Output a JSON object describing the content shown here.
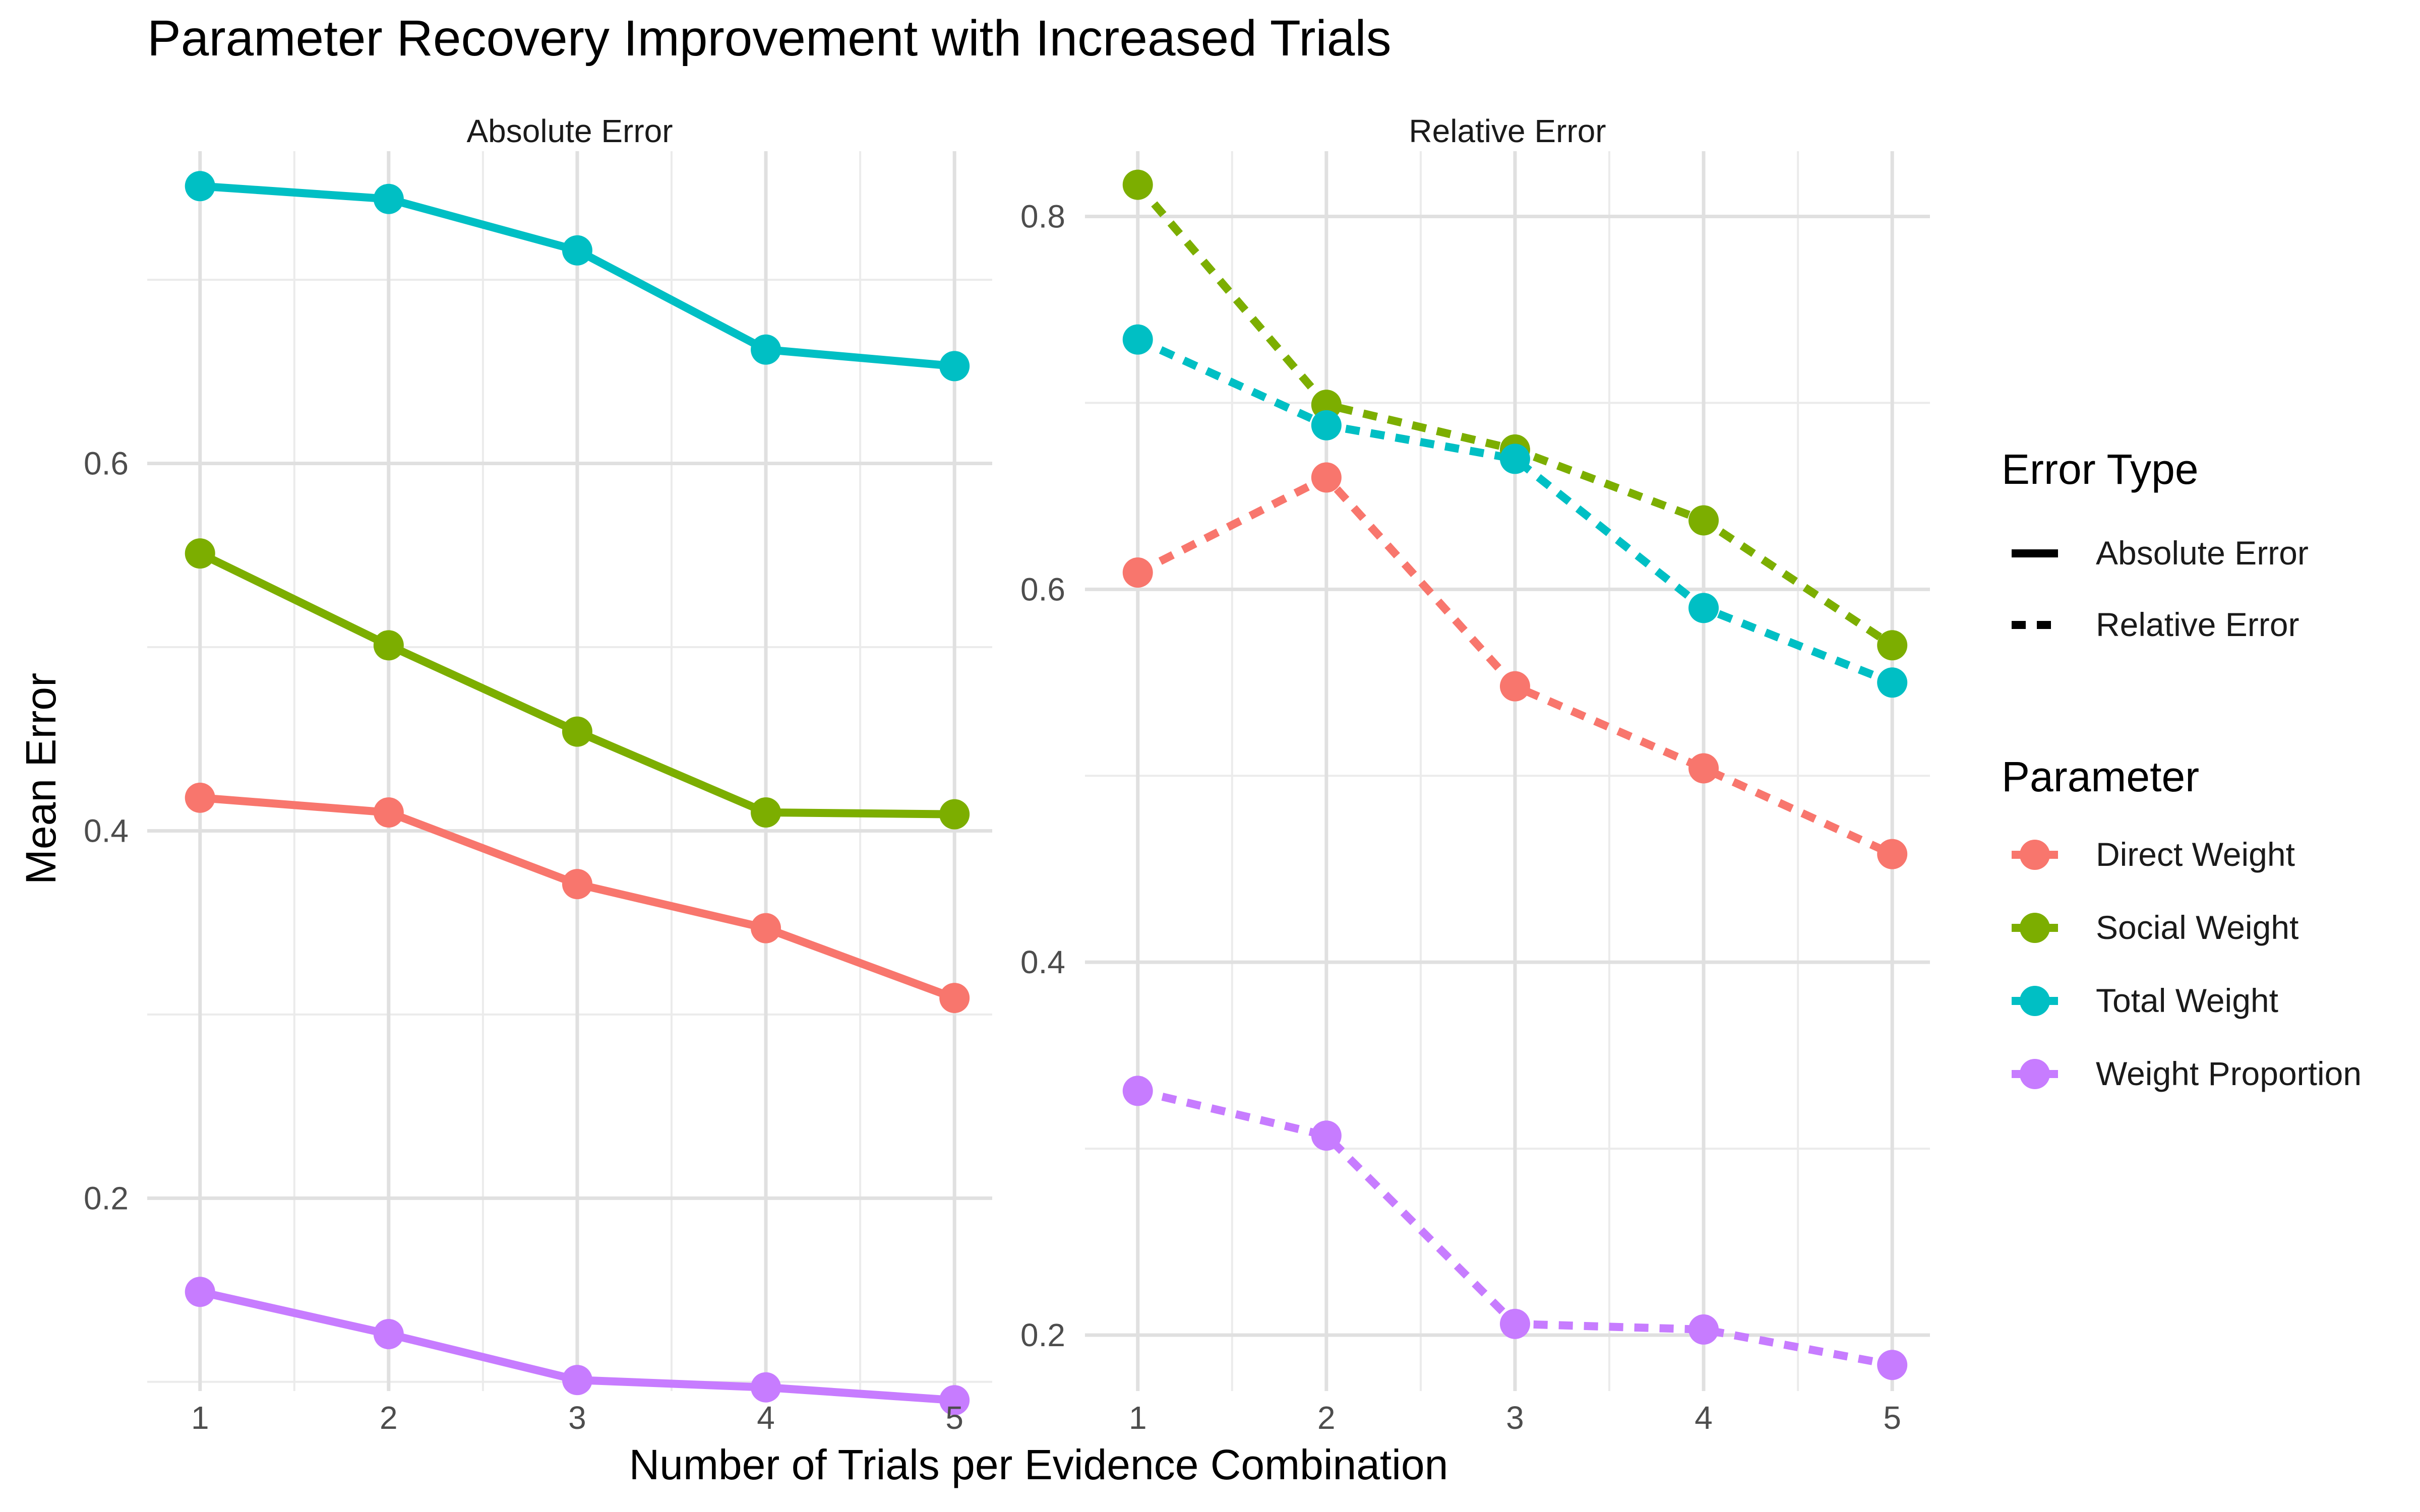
{
  "chart_data": {
    "type": "line",
    "title": "Parameter Recovery Improvement with Increased Trials",
    "xlabel": "Number of Trials per Evidence Combination",
    "ylabel": "Mean Error",
    "x": [
      1,
      2,
      3,
      4,
      5
    ],
    "grid": true,
    "legend_position": "right",
    "panels": [
      {
        "title": "Absolute Error",
        "line_style": "solid",
        "ylim": [
          0.095,
          0.77
        ],
        "y_ticks": [
          0.2,
          0.4,
          0.6
        ],
        "series": [
          {
            "name": "Direct Weight",
            "values": [
              0.418,
              0.41,
              0.371,
              0.347,
              0.309
            ]
          },
          {
            "name": "Social Weight",
            "values": [
              0.551,
              0.501,
              0.454,
              0.41,
              0.409
            ]
          },
          {
            "name": "Total Weight",
            "values": [
              0.751,
              0.744,
              0.716,
              0.662,
              0.653
            ]
          },
          {
            "name": "Weight Proportion",
            "values": [
              0.149,
              0.126,
              0.101,
              0.097,
              0.09
            ]
          }
        ]
      },
      {
        "title": "Relative Error",
        "line_style": "dashed",
        "ylim": [
          0.17,
          0.835
        ],
        "y_ticks": [
          0.2,
          0.4,
          0.6,
          0.8
        ],
        "series": [
          {
            "name": "Direct Weight",
            "values": [
              0.609,
              0.66,
              0.548,
              0.504,
              0.458
            ]
          },
          {
            "name": "Social Weight",
            "values": [
              0.817,
              0.699,
              0.675,
              0.637,
              0.57
            ]
          },
          {
            "name": "Total Weight",
            "values": [
              0.734,
              0.688,
              0.67,
              0.59,
              0.55
            ]
          },
          {
            "name": "Weight Proportion",
            "values": [
              0.331,
              0.307,
              0.206,
              0.203,
              0.184
            ]
          }
        ]
      }
    ],
    "legends": [
      {
        "title": "Error Type",
        "entries": [
          {
            "label": "Absolute Error",
            "style": "solid"
          },
          {
            "label": "Relative Error",
            "style": "dashed"
          }
        ]
      },
      {
        "title": "Parameter",
        "entries": [
          {
            "label": "Direct Weight",
            "color": "#F8766D"
          },
          {
            "label": "Social Weight",
            "color": "#7CAE00"
          },
          {
            "label": "Total Weight",
            "color": "#00BFC4"
          },
          {
            "label": "Weight Proportion",
            "color": "#C77CFF"
          }
        ]
      }
    ],
    "colors": {
      "Direct Weight": "#F8766D",
      "Social Weight": "#7CAE00",
      "Total Weight": "#00BFC4",
      "Weight Proportion": "#C77CFF"
    }
  }
}
